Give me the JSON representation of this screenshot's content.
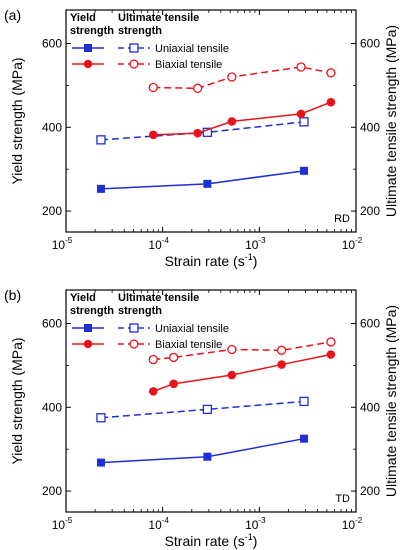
{
  "chart_data": [
    {
      "panel_label": "(a)",
      "type": "line",
      "xscale": "log",
      "xlim": [
        1e-05,
        0.01
      ],
      "y_left": {
        "label": "Yield strength (MPa)",
        "lim": [
          150,
          680
        ],
        "ticks": [
          200,
          400,
          600
        ]
      },
      "y_right": {
        "label": "Ultimate tensile strength (MPa)",
        "lim": [
          150,
          680
        ],
        "ticks": [
          200,
          400,
          600
        ]
      },
      "xlabel": "Strain rate (s",
      "xlabel_sup": "-1",
      "xlabel_end": ")",
      "x_ticks": [
        {
          "base": "10",
          "exp": "-5",
          "value": 1e-05
        },
        {
          "base": "10",
          "exp": "-4",
          "value": 0.0001
        },
        {
          "base": "10",
          "exp": "-3",
          "value": 0.001
        },
        {
          "base": "10",
          "exp": "-2",
          "value": 0.01
        }
      ],
      "annotation": "RD",
      "legend": {
        "head_yield_1": "Yield",
        "head_yield_2": "strength",
        "head_uts": "Ultimate tensile",
        "head_uts_2": "strength",
        "uniaxial": "Uniaxial tensile",
        "biaxial": "Biaxial tensile"
      },
      "series": [
        {
          "name": "Uniaxial tensile",
          "kind": "yield",
          "color": "#1f2fd6",
          "dash": false,
          "marker": "filled-square",
          "x": [
            2.3e-05,
            0.00029,
            0.0029
          ],
          "y": [
            253,
            265,
            296
          ]
        },
        {
          "name": "Uniaxial tensile",
          "kind": "uts",
          "color": "#1f2fd6",
          "dash": true,
          "marker": "open-square",
          "x": [
            2.3e-05,
            0.00029,
            0.0029
          ],
          "y": [
            370,
            388,
            413
          ]
        },
        {
          "name": "Biaxial tensile",
          "kind": "yield",
          "color": "#e8141c",
          "dash": false,
          "marker": "filled-circle",
          "x": [
            8e-05,
            0.00023,
            0.00052,
            0.0027,
            0.0055
          ],
          "y": [
            382,
            386,
            414,
            432,
            460
          ]
        },
        {
          "name": "Biaxial tensile",
          "kind": "uts",
          "color": "#e8141c",
          "dash": true,
          "marker": "open-circle",
          "x": [
            8e-05,
            0.00023,
            0.00052,
            0.0027,
            0.0055
          ],
          "y": [
            495,
            493,
            520,
            544,
            530
          ]
        }
      ]
    },
    {
      "panel_label": "(b)",
      "type": "line",
      "xscale": "log",
      "xlim": [
        1e-05,
        0.01
      ],
      "y_left": {
        "label": "Yield strength (MPa)",
        "lim": [
          150,
          680
        ],
        "ticks": [
          200,
          400,
          600
        ]
      },
      "y_right": {
        "label": "Ultimate tensile strength (MPa)",
        "lim": [
          150,
          680
        ],
        "ticks": [
          200,
          400,
          600
        ]
      },
      "xlabel": "Strain rate (s",
      "xlabel_sup": "-1",
      "xlabel_end": ")",
      "x_ticks": [
        {
          "base": "10",
          "exp": "-5",
          "value": 1e-05
        },
        {
          "base": "10",
          "exp": "-4",
          "value": 0.0001
        },
        {
          "base": "10",
          "exp": "-3",
          "value": 0.001
        },
        {
          "base": "10",
          "exp": "-2",
          "value": 0.01
        }
      ],
      "annotation": "TD",
      "legend": {
        "head_yield_1": "Yield",
        "head_yield_2": "strength",
        "head_uts": "Ultimate tensile",
        "head_uts_2": "strength",
        "uniaxial": "Uniaxial tensile",
        "biaxial": "Biaxial tensile"
      },
      "series": [
        {
          "name": "Uniaxial tensile",
          "kind": "yield",
          "color": "#1f2fd6",
          "dash": false,
          "marker": "filled-square",
          "x": [
            2.3e-05,
            0.00029,
            0.0029
          ],
          "y": [
            268,
            282,
            325
          ]
        },
        {
          "name": "Uniaxial tensile",
          "kind": "uts",
          "color": "#1f2fd6",
          "dash": true,
          "marker": "open-square",
          "x": [
            2.3e-05,
            0.00029,
            0.0029
          ],
          "y": [
            375,
            395,
            414
          ]
        },
        {
          "name": "Biaxial tensile",
          "kind": "yield",
          "color": "#e8141c",
          "dash": false,
          "marker": "filled-circle",
          "x": [
            8e-05,
            0.00013,
            0.00052,
            0.0017,
            0.0055
          ],
          "y": [
            438,
            456,
            477,
            502,
            526
          ]
        },
        {
          "name": "Biaxial tensile",
          "kind": "uts",
          "color": "#e8141c",
          "dash": true,
          "marker": "open-circle",
          "x": [
            8e-05,
            0.00013,
            0.00052,
            0.0017,
            0.0055
          ],
          "y": [
            514,
            519,
            538,
            536,
            556
          ]
        }
      ]
    }
  ]
}
